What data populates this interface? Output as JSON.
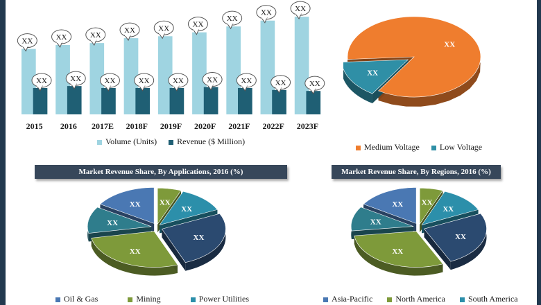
{
  "colors": {
    "volume": "#9fd4e1",
    "revenue": "#1f5f74",
    "medium_voltage": "#ef7d2e",
    "low_voltage": "#2f8fa6",
    "oil_gas": "#4a78b3",
    "mining": "#7e9a3a",
    "power_utilities": "#2c8faa",
    "asia_pacific": "#4a78b3",
    "north_america": "#7e9a3a",
    "south_america": "#2c8faa",
    "dark_navy": "#2b4a70",
    "teal": "#2f7d8c"
  },
  "chart_data": [
    {
      "type": "bar",
      "categories": [
        "2015",
        "2016",
        "2017E",
        "2018F",
        "2019F",
        "2020F",
        "2021F",
        "2022F",
        "2023F"
      ],
      "series": [
        {
          "name": "Volume (Units)",
          "values": [
            67,
            71,
            73,
            78,
            80,
            84,
            90,
            96,
            100
          ],
          "labels": [
            "XX",
            "XX",
            "XX",
            "XX",
            "XX",
            "XX",
            "XX",
            "XX",
            "XX"
          ]
        },
        {
          "name": "Revenue ($ Million)",
          "values": [
            27,
            29,
            27,
            27,
            27,
            28,
            27,
            25,
            24
          ],
          "labels": [
            "XX",
            "XX",
            "XX",
            "XX",
            "XX",
            "XX",
            "XX",
            "XX",
            "XX"
          ]
        }
      ],
      "ylim": [
        0,
        110
      ],
      "legend": "bottom",
      "grid": false
    },
    {
      "type": "pie",
      "style": "3d",
      "slices": [
        {
          "name": "Medium Voltage",
          "value": 85,
          "label": "XX"
        },
        {
          "name": "Low Voltage",
          "value": 15,
          "label": "XX"
        }
      ],
      "legend": "bottom"
    },
    {
      "type": "pie",
      "style": "3d-exploded",
      "title": "Market Revenue Share, By Applications, 2016 (%)",
      "slices": [
        {
          "name": "Oil & Gas",
          "value": 16,
          "label": "XX"
        },
        {
          "name": "Mining",
          "value": 6,
          "label": "XX"
        },
        {
          "name": "Power Utilities",
          "value": 12,
          "label": "XX"
        },
        {
          "name": "",
          "value": 26,
          "label": "XX"
        },
        {
          "name": "",
          "value": 28,
          "label": "XX"
        },
        {
          "name": "",
          "value": 12,
          "label": "XX"
        }
      ],
      "legend": "bottom"
    },
    {
      "type": "pie",
      "style": "3d-exploded",
      "title": "Market Revenue Share, By Regions, 2016 (%)",
      "slices": [
        {
          "name": "Asia-Pacific",
          "value": 16,
          "label": "XX"
        },
        {
          "name": "North America",
          "value": 6,
          "label": "XX"
        },
        {
          "name": "South America",
          "value": 12,
          "label": "XX"
        },
        {
          "name": "",
          "value": 25,
          "label": "XX"
        },
        {
          "name": "",
          "value": 30,
          "label": "XX"
        },
        {
          "name": "",
          "value": 11,
          "label": "XX"
        }
      ],
      "legend": "bottom"
    }
  ]
}
